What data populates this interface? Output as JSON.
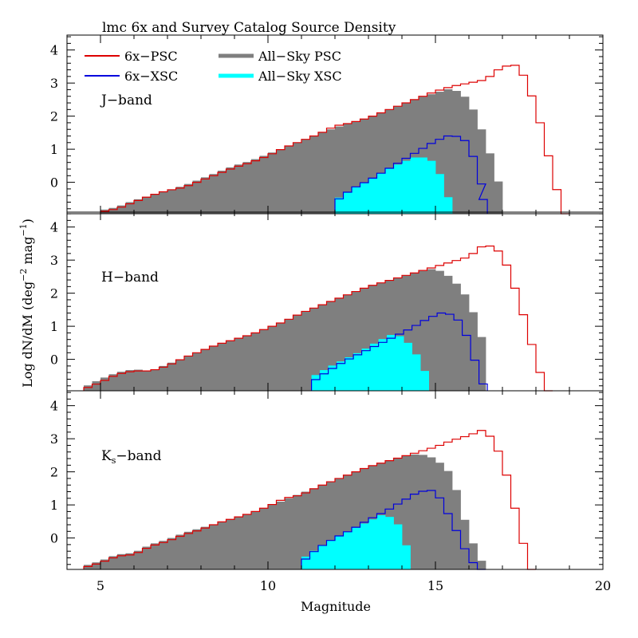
{
  "chart_data": {
    "type": "histogram",
    "title": "lmc  6x and Survey Catalog Source Density",
    "xlabel": "Magnitude",
    "ylabel": "Log dN/dM (deg^-2 mag^-1)",
    "ylabel_parts": {
      "pre": "Log dN/dM (deg",
      "exp1": "−2",
      "mid": " mag",
      "exp2": "−1",
      "post": ")"
    },
    "xlim": [
      4,
      20
    ],
    "ylim": [
      -0.95,
      4.45
    ],
    "xticks": [
      5,
      10,
      15,
      20
    ],
    "xtick_labels": [
      "5",
      "10",
      "15",
      "20"
    ],
    "yticks": [
      0,
      1,
      2,
      3,
      4
    ],
    "ytick_labels": [
      "0",
      "1",
      "2",
      "3",
      "4"
    ],
    "legend": [
      {
        "name": "6x−PSC",
        "style": "line",
        "color": "#dd0000"
      },
      {
        "name": "6x−XSC",
        "style": "line",
        "color": "#0000dd"
      },
      {
        "name": "All−Sky PSC",
        "style": "fill",
        "color": "#7f7f7f"
      },
      {
        "name": "All−Sky XSC",
        "style": "fill",
        "color": "#00ffff"
      }
    ],
    "colors": {
      "psc6x": "#dd0000",
      "xsc6x": "#0000dd",
      "allsky_psc": "#7f7f7f",
      "allsky_xsc": "#00ffff"
    },
    "panels": [
      {
        "band_label": "J−band",
        "band_main": "J−band",
        "band_sub": "",
        "band_suffix": "",
        "psc6x": [
          [
            5.0,
            -0.9
          ],
          [
            5.5,
            -0.8
          ],
          [
            6.0,
            -0.6
          ],
          [
            6.5,
            -0.4
          ],
          [
            7.0,
            -0.25
          ],
          [
            7.5,
            -0.15
          ],
          [
            8.0,
            0.05
          ],
          [
            8.5,
            0.25
          ],
          [
            9.0,
            0.45
          ],
          [
            9.5,
            0.6
          ],
          [
            10.0,
            0.8
          ],
          [
            10.5,
            1.05
          ],
          [
            11.0,
            1.25
          ],
          [
            11.5,
            1.45
          ],
          [
            12.0,
            1.7
          ],
          [
            12.5,
            1.8
          ],
          [
            13.0,
            1.95
          ],
          [
            13.5,
            2.15
          ],
          [
            14.0,
            2.35
          ],
          [
            14.5,
            2.55
          ],
          [
            15.0,
            2.75
          ],
          [
            15.5,
            2.9
          ],
          [
            16.0,
            3.0
          ],
          [
            16.5,
            3.1
          ],
          [
            17.0,
            3.5
          ],
          [
            17.5,
            3.55
          ],
          [
            18.0,
            2.3
          ],
          [
            18.5,
            0.3
          ],
          [
            18.8,
            -0.95
          ]
        ],
        "xsc6x": [
          [
            12.0,
            -0.6
          ],
          [
            12.5,
            -0.2
          ],
          [
            13.0,
            0.05
          ],
          [
            13.5,
            0.35
          ],
          [
            14.0,
            0.65
          ],
          [
            14.5,
            0.95
          ],
          [
            15.0,
            1.25
          ],
          [
            15.5,
            1.45
          ],
          [
            16.0,
            1.2
          ],
          [
            16.3,
            0.2
          ],
          [
            16.5,
            -0.95
          ]
        ],
        "allsky_psc": [
          [
            5.0,
            -0.85
          ],
          [
            5.5,
            -0.75
          ],
          [
            6.0,
            -0.55
          ],
          [
            6.5,
            -0.4
          ],
          [
            7.0,
            -0.25
          ],
          [
            7.5,
            -0.1
          ],
          [
            8.0,
            0.1
          ],
          [
            8.5,
            0.3
          ],
          [
            9.0,
            0.5
          ],
          [
            9.5,
            0.65
          ],
          [
            10.0,
            0.85
          ],
          [
            10.5,
            1.05
          ],
          [
            11.0,
            1.25
          ],
          [
            11.5,
            1.45
          ],
          [
            12.0,
            1.65
          ],
          [
            12.5,
            1.8
          ],
          [
            13.0,
            1.95
          ],
          [
            13.5,
            2.15
          ],
          [
            14.0,
            2.35
          ],
          [
            14.5,
            2.55
          ],
          [
            15.0,
            2.7
          ],
          [
            15.5,
            2.85
          ],
          [
            16.0,
            2.5
          ],
          [
            16.5,
            1.3
          ],
          [
            17.0,
            -0.4
          ]
        ],
        "allsky_xsc": [
          [
            12.0,
            -0.55
          ],
          [
            12.5,
            -0.2
          ],
          [
            13.0,
            0.05
          ],
          [
            13.5,
            0.35
          ],
          [
            14.0,
            0.6
          ],
          [
            14.5,
            0.8
          ],
          [
            15.0,
            0.6
          ],
          [
            15.5,
            -0.8
          ]
        ]
      },
      {
        "band_label": "H−band",
        "band_main": "H−band",
        "band_sub": "",
        "band_suffix": "",
        "psc6x": [
          [
            4.5,
            -0.9
          ],
          [
            5.0,
            -0.7
          ],
          [
            5.5,
            -0.45
          ],
          [
            6.0,
            -0.35
          ],
          [
            6.5,
            -0.35
          ],
          [
            7.0,
            -0.2
          ],
          [
            7.5,
            0.05
          ],
          [
            8.0,
            0.25
          ],
          [
            8.5,
            0.45
          ],
          [
            9.0,
            0.6
          ],
          [
            9.5,
            0.75
          ],
          [
            10.0,
            0.95
          ],
          [
            10.5,
            1.15
          ],
          [
            11.0,
            1.4
          ],
          [
            11.5,
            1.6
          ],
          [
            12.0,
            1.8
          ],
          [
            12.5,
            2.0
          ],
          [
            13.0,
            2.2
          ],
          [
            13.5,
            2.35
          ],
          [
            14.0,
            2.5
          ],
          [
            14.5,
            2.65
          ],
          [
            15.0,
            2.8
          ],
          [
            15.5,
            2.95
          ],
          [
            16.0,
            3.1
          ],
          [
            16.5,
            3.5
          ],
          [
            17.0,
            3.2
          ],
          [
            17.5,
            1.8
          ],
          [
            18.0,
            0.0
          ],
          [
            18.3,
            -0.95
          ]
        ],
        "xsc6x": [
          [
            11.3,
            -0.7
          ],
          [
            11.8,
            -0.35
          ],
          [
            12.3,
            -0.05
          ],
          [
            12.8,
            0.2
          ],
          [
            13.3,
            0.45
          ],
          [
            13.8,
            0.7
          ],
          [
            14.3,
            0.95
          ],
          [
            14.8,
            1.25
          ],
          [
            15.3,
            1.45
          ],
          [
            15.8,
            1.1
          ],
          [
            16.3,
            -0.4
          ],
          [
            16.5,
            -0.95
          ]
        ],
        "allsky_psc": [
          [
            4.5,
            -0.85
          ],
          [
            5.0,
            -0.6
          ],
          [
            5.5,
            -0.4
          ],
          [
            6.0,
            -0.3
          ],
          [
            6.5,
            -0.35
          ],
          [
            7.0,
            -0.15
          ],
          [
            7.5,
            0.05
          ],
          [
            8.0,
            0.25
          ],
          [
            8.5,
            0.45
          ],
          [
            9.0,
            0.6
          ],
          [
            9.5,
            0.75
          ],
          [
            10.0,
            0.95
          ],
          [
            10.5,
            1.15
          ],
          [
            11.0,
            1.4
          ],
          [
            11.5,
            1.6
          ],
          [
            12.0,
            1.8
          ],
          [
            12.5,
            2.0
          ],
          [
            13.0,
            2.2
          ],
          [
            13.5,
            2.35
          ],
          [
            14.0,
            2.5
          ],
          [
            14.5,
            2.65
          ],
          [
            15.0,
            2.75
          ],
          [
            15.5,
            2.45
          ],
          [
            16.0,
            1.8
          ],
          [
            16.5,
            0.3
          ]
        ],
        "allsky_xsc": [
          [
            11.3,
            -0.55
          ],
          [
            11.8,
            -0.25
          ],
          [
            12.3,
            0.0
          ],
          [
            12.8,
            0.25
          ],
          [
            13.3,
            0.55
          ],
          [
            13.8,
            0.8
          ],
          [
            14.3,
            0.4
          ],
          [
            14.8,
            -0.6
          ]
        ]
      },
      {
        "band_label": "Ks−band",
        "band_main": "K",
        "band_sub": "s",
        "band_suffix": "−band",
        "psc6x": [
          [
            4.5,
            -0.9
          ],
          [
            5.0,
            -0.75
          ],
          [
            5.5,
            -0.55
          ],
          [
            6.0,
            -0.5
          ],
          [
            6.5,
            -0.25
          ],
          [
            7.0,
            -0.1
          ],
          [
            7.5,
            0.1
          ],
          [
            8.0,
            0.25
          ],
          [
            8.5,
            0.45
          ],
          [
            9.0,
            0.6
          ],
          [
            9.5,
            0.75
          ],
          [
            10.0,
            0.95
          ],
          [
            10.5,
            1.2
          ],
          [
            11.0,
            1.3
          ],
          [
            11.5,
            1.55
          ],
          [
            12.0,
            1.75
          ],
          [
            12.5,
            1.95
          ],
          [
            13.0,
            2.15
          ],
          [
            13.5,
            2.3
          ],
          [
            14.0,
            2.45
          ],
          [
            14.5,
            2.6
          ],
          [
            15.0,
            2.75
          ],
          [
            15.5,
            2.95
          ],
          [
            16.0,
            3.1
          ],
          [
            16.5,
            3.3
          ],
          [
            17.0,
            2.4
          ],
          [
            17.5,
            0.4
          ],
          [
            17.8,
            -0.95
          ]
        ],
        "xsc6x": [
          [
            11.0,
            -0.75
          ],
          [
            11.5,
            -0.3
          ],
          [
            12.0,
            0.0
          ],
          [
            12.5,
            0.25
          ],
          [
            13.0,
            0.55
          ],
          [
            13.5,
            0.8
          ],
          [
            14.0,
            1.1
          ],
          [
            14.5,
            1.4
          ],
          [
            15.0,
            1.45
          ],
          [
            15.5,
            0.5
          ],
          [
            16.0,
            -0.6
          ],
          [
            16.3,
            -0.95
          ]
        ],
        "allsky_psc": [
          [
            4.5,
            -0.85
          ],
          [
            5.0,
            -0.7
          ],
          [
            5.5,
            -0.5
          ],
          [
            6.0,
            -0.45
          ],
          [
            6.5,
            -0.2
          ],
          [
            7.0,
            -0.05
          ],
          [
            7.5,
            0.15
          ],
          [
            8.0,
            0.3
          ],
          [
            8.5,
            0.45
          ],
          [
            9.0,
            0.6
          ],
          [
            9.5,
            0.75
          ],
          [
            10.0,
            0.95
          ],
          [
            10.5,
            1.15
          ],
          [
            11.0,
            1.35
          ],
          [
            11.5,
            1.55
          ],
          [
            12.0,
            1.75
          ],
          [
            12.5,
            1.95
          ],
          [
            13.0,
            2.15
          ],
          [
            13.5,
            2.3
          ],
          [
            14.0,
            2.45
          ],
          [
            14.5,
            2.55
          ],
          [
            15.0,
            2.4
          ],
          [
            15.5,
            1.9
          ],
          [
            16.0,
            0.1
          ],
          [
            16.5,
            -0.95
          ]
        ],
        "allsky_xsc": [
          [
            11.0,
            -0.65
          ],
          [
            11.5,
            -0.3
          ],
          [
            12.0,
            0.0
          ],
          [
            12.5,
            0.25
          ],
          [
            13.0,
            0.5
          ],
          [
            13.5,
            0.75
          ],
          [
            14.0,
            0.3
          ],
          [
            14.3,
            -0.95
          ]
        ]
      }
    ]
  }
}
